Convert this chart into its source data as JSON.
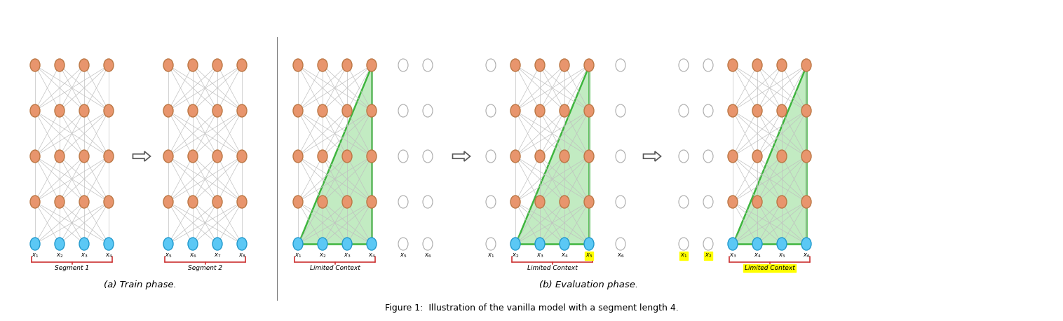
{
  "fig_width": 15.16,
  "fig_height": 4.58,
  "bg_color": "#ffffff",
  "orange_color": "#E8956D",
  "blue_color": "#5BC8F5",
  "empty_color": "#ffffff",
  "empty_edge": "#aaaaaa",
  "green_fill": "#b8e8b8",
  "green_edge": "#22aa22",
  "gray_line": "#c0c0c0",
  "red_brace": "#cc3333",
  "yellow_bg": "#ffff00",
  "figure_caption": "Figure 1:  Illustration of the vanilla model with a segment length 4.",
  "train_label": "(a) Train phase.",
  "eval_label": "(b) Evaluation phase."
}
